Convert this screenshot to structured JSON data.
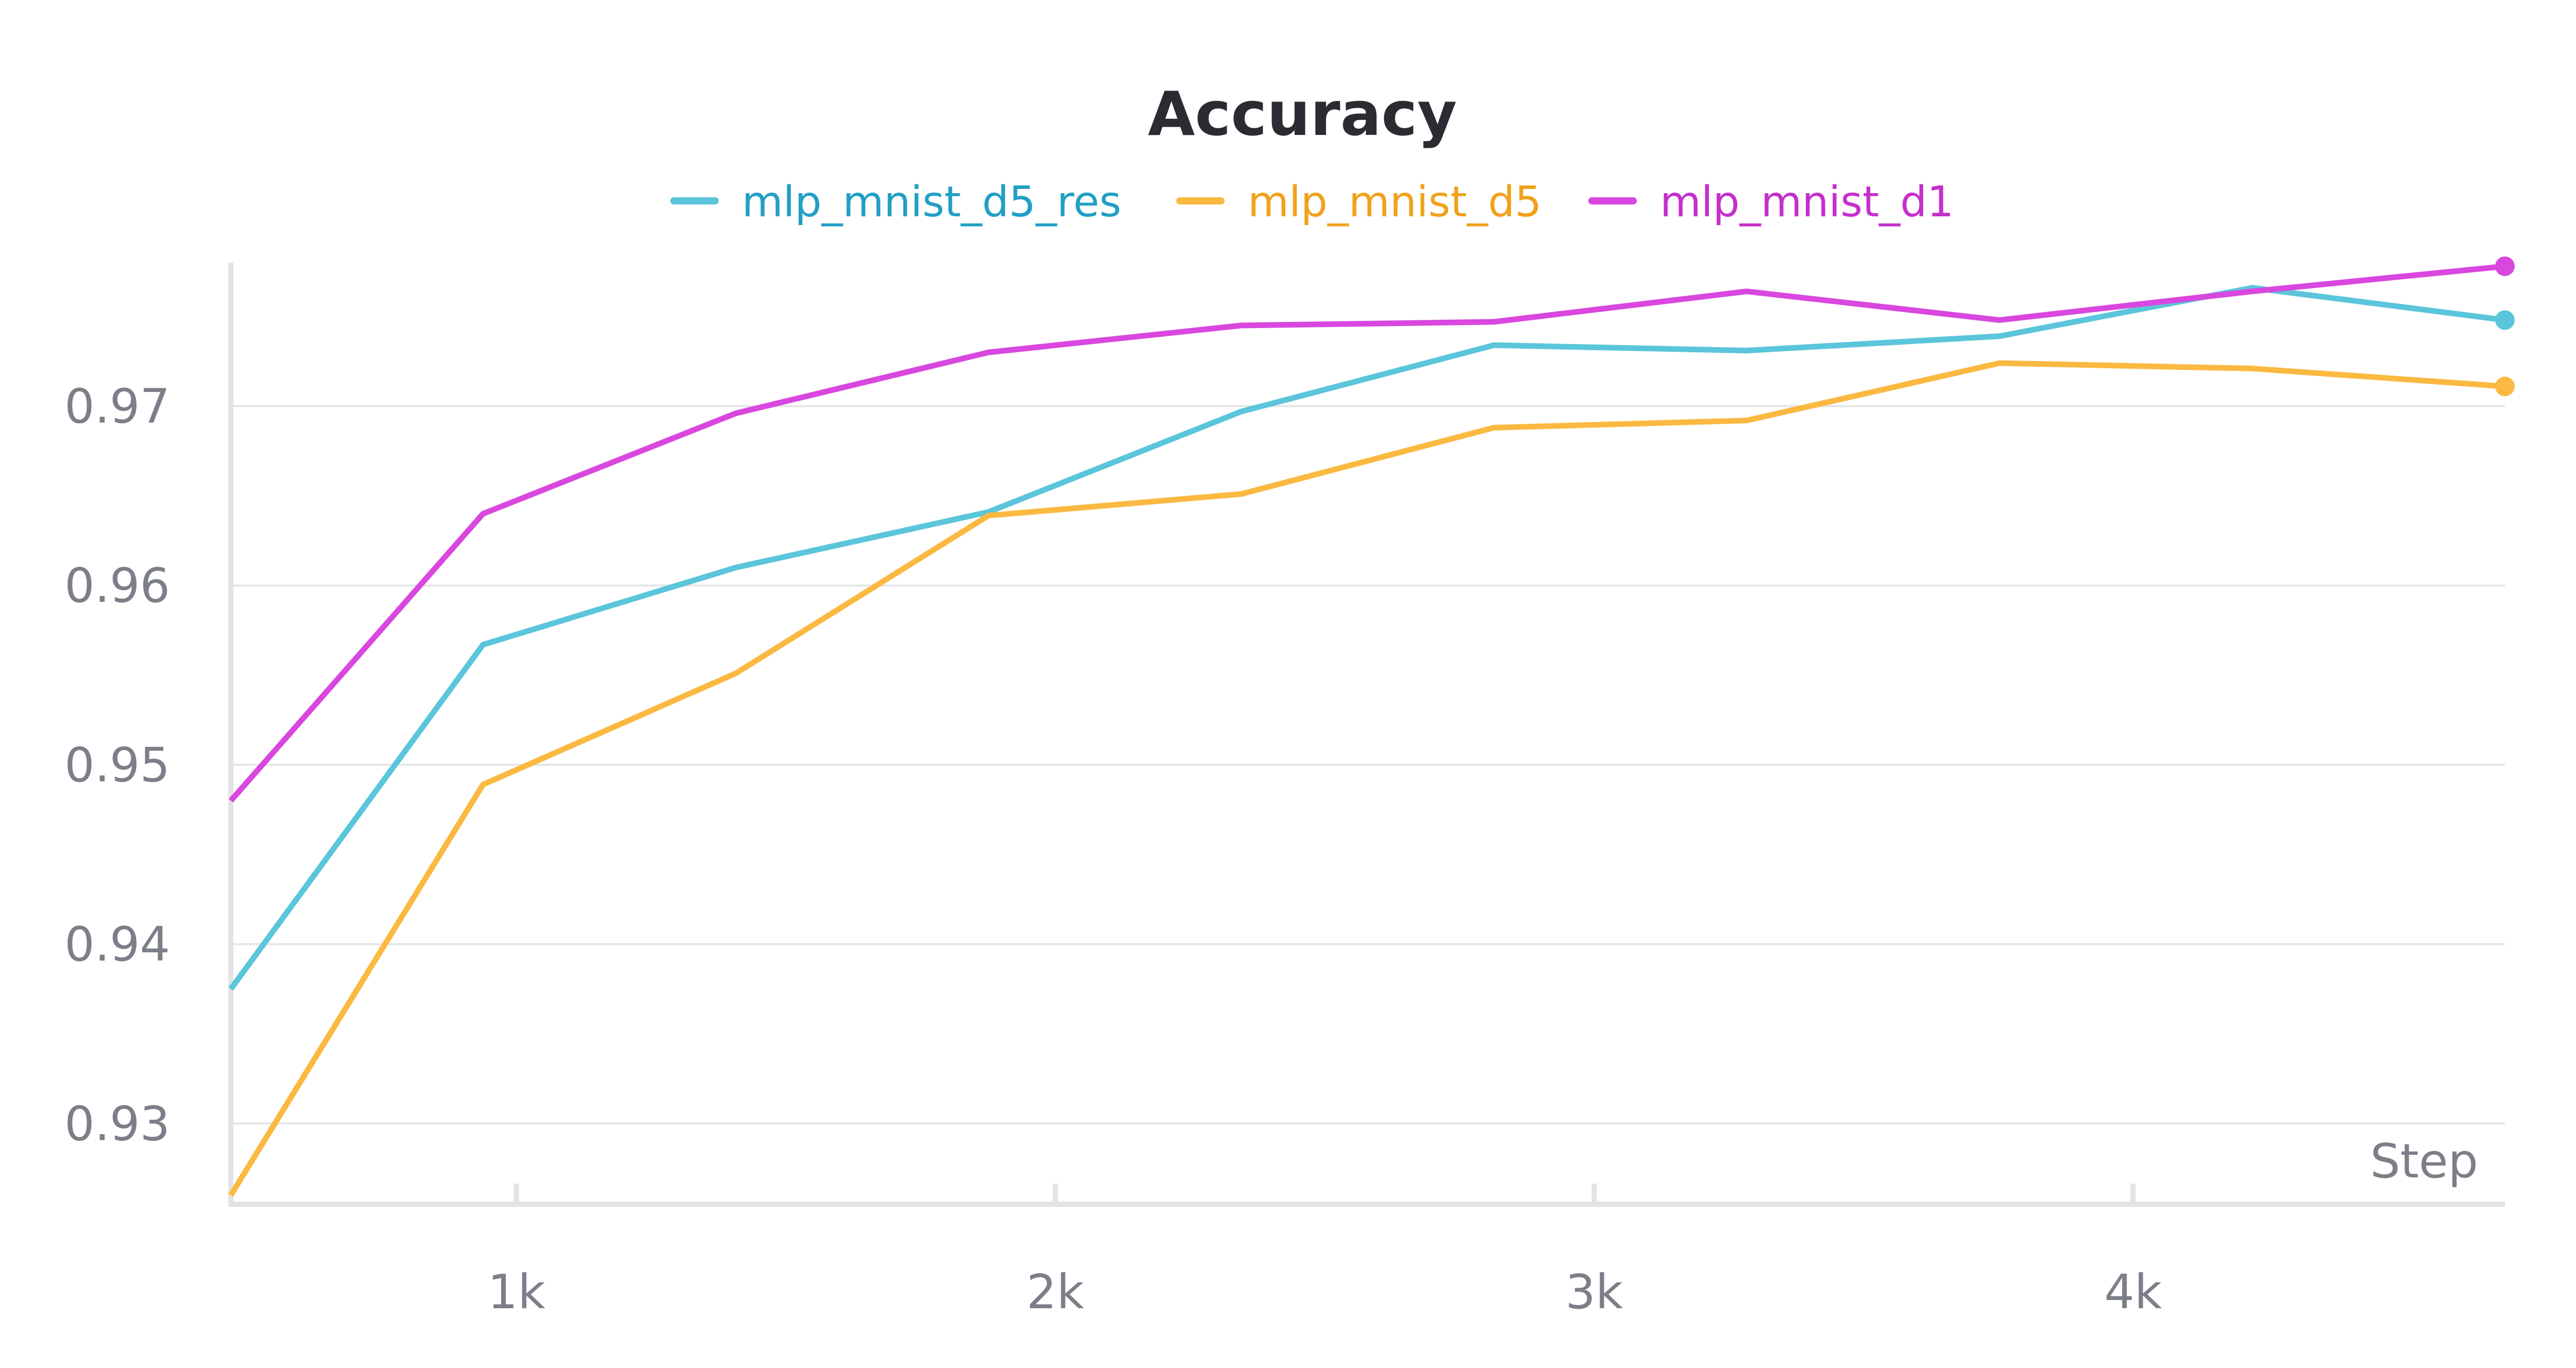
{
  "chart_data": {
    "type": "line",
    "title": "Accuracy",
    "xlabel": "Step",
    "ylabel": "",
    "xlim": [
      470,
      4690
    ],
    "ylim": [
      0.9255,
      0.978
    ],
    "x_ticks": [
      1000,
      2000,
      3000,
      4000
    ],
    "x_tick_labels": [
      "1k",
      "2k",
      "3k",
      "4k"
    ],
    "y_ticks": [
      0.93,
      0.94,
      0.95,
      0.96,
      0.97
    ],
    "y_tick_labels": [
      "0.93",
      "0.94",
      "0.95",
      "0.96",
      "0.97"
    ],
    "grid": true,
    "legend_position": "top-center",
    "x": [
      470,
      938,
      1407,
      1876,
      2345,
      2814,
      3283,
      3752,
      4221,
      4690
    ],
    "series": [
      {
        "name": "mlp_mnist_d5_res",
        "color": "#5bc5db",
        "label_color": "#229fc4",
        "values": [
          0.9375,
          0.9567,
          0.961,
          0.9641,
          0.9697,
          0.9734,
          0.9731,
          0.9739,
          0.9766,
          0.9748
        ]
      },
      {
        "name": "mlp_mnist_d5",
        "color": "#fbb941",
        "label_color": "#f0a21c",
        "values": [
          0.926,
          0.9489,
          0.9551,
          0.9639,
          0.9651,
          0.9688,
          0.9692,
          0.9724,
          0.9721,
          0.9711
        ]
      },
      {
        "name": "mlp_mnist_d1",
        "color": "#d947df",
        "label_color": "#c52fcb",
        "values": [
          0.948,
          0.964,
          0.9696,
          0.973,
          0.9745,
          0.9747,
          0.9764,
          0.9748,
          0.9764,
          0.9778
        ]
      }
    ]
  }
}
